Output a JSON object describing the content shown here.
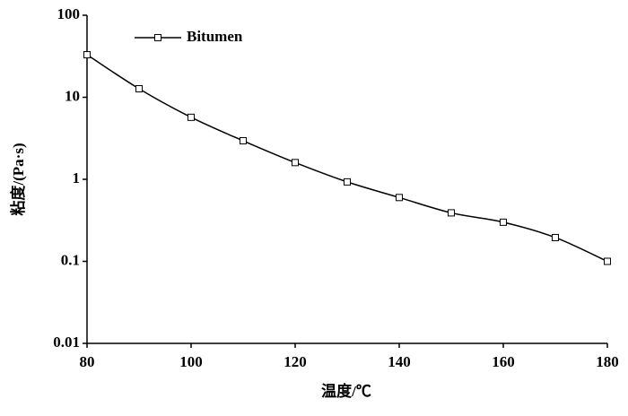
{
  "chart_data": {
    "type": "line",
    "x_label": "温度/℃",
    "y_label": "粘度/(Pa·s)",
    "x": [
      80,
      90,
      100,
      110,
      120,
      130,
      140,
      150,
      160,
      170,
      180
    ],
    "series": [
      {
        "name": "Bitumen",
        "color": "#000000",
        "values": [
          33,
          12.7,
          5.7,
          2.95,
          1.6,
          0.93,
          0.6,
          0.39,
          0.3,
          0.195,
          0.1
        ]
      }
    ],
    "xlim": [
      80,
      180
    ],
    "xticks": [
      80,
      100,
      120,
      140,
      160,
      180
    ],
    "ylim": [
      0.01,
      100
    ],
    "yticks": [
      0.01,
      0.1,
      1,
      10,
      100
    ],
    "y_scale": "log",
    "grid": false,
    "legend": "upper left"
  }
}
